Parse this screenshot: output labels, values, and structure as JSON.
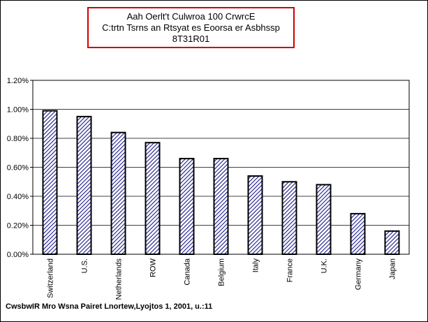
{
  "title_box": {
    "line1": "Aah Oerlt't Culwroa 100 CrwrcE",
    "line2": "C:trtn Tsrns an Rtsyat es Eoorsa er Asbhssp",
    "line3": "8T31R01"
  },
  "source_note": "CwsbwIR  Mro Wsna Pairet Lnortew,Lyojtos 1, 2001, u.:11",
  "chart_data": {
    "type": "bar",
    "title": "Aah Oerlt't Culwroa 100 CrwrcE",
    "subtitle": "C:trtn Tsrns an Rtsyat es Eoorsa er Asbhssp 8T31R01",
    "xlabel": "",
    "ylabel": "",
    "categories": [
      "Switzerland",
      "U.S.",
      "Netherlands",
      "ROW",
      "Canada",
      "Belgium",
      "Italy",
      "France",
      "U.K.",
      "Germany",
      "Japan"
    ],
    "values": [
      0.99,
      0.95,
      0.84,
      0.77,
      0.66,
      0.66,
      0.54,
      0.5,
      0.48,
      0.28,
      0.16
    ],
    "ylim": [
      0,
      1.2
    ],
    "yticks": [
      "0.00%",
      "0.20%",
      "0.40%",
      "0.60%",
      "0.80%",
      "1.00%",
      "1.20%"
    ],
    "grid": true,
    "bar_fill": "diagonal hatch",
    "bar_color": "#1a1a8c",
    "legend": "none"
  }
}
